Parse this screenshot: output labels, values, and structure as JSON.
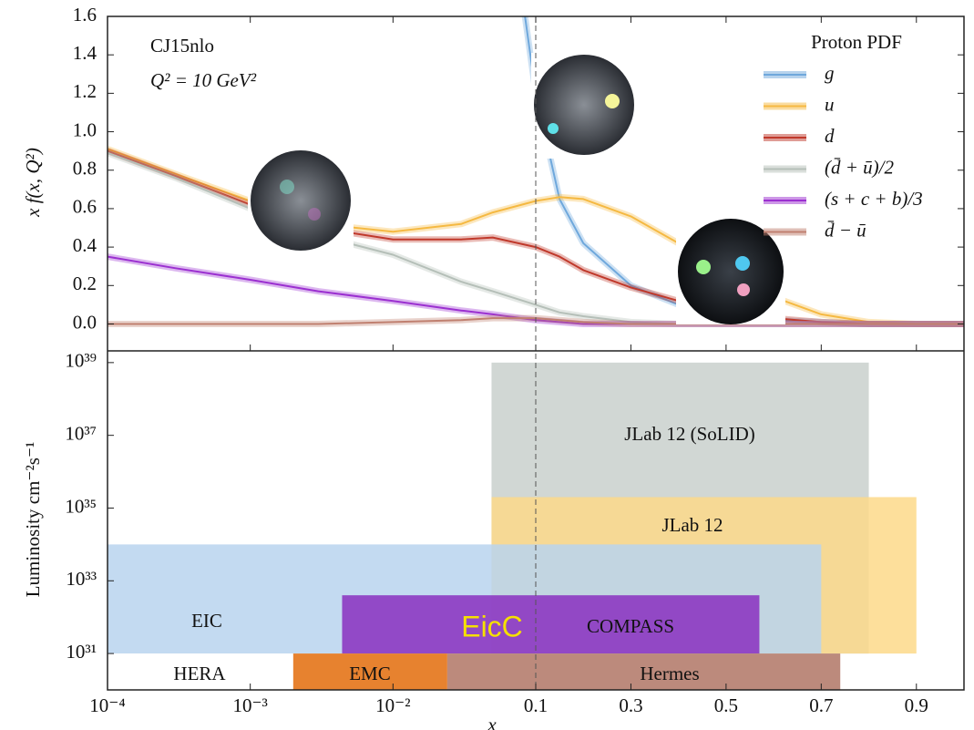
{
  "chart_data": [
    {
      "type": "line",
      "annotations": [
        "CJ15nlo",
        "Q² = 10 GeV²"
      ],
      "ylabel": "x f(x, Q²)",
      "legend_title": "Proton PDF",
      "legend": "upper right",
      "xscale": "log-linear",
      "vline": 0.1,
      "xlim": [
        0.0001,
        1
      ],
      "ylim": [
        -0.14,
        1.6
      ],
      "yticks": [
        {
          "value": 0,
          "label": "0.0"
        },
        0.2,
        0.4,
        0.6,
        0.8,
        {
          "value": 1,
          "label": "1.0"
        },
        1.2,
        1.4,
        1.6
      ],
      "x": [
        0.0001,
        0.0003,
        0.001,
        0.003,
        0.01,
        0.03,
        0.05,
        0.1,
        0.15,
        0.2,
        0.3,
        0.4,
        0.5,
        0.6,
        0.7,
        0.8,
        0.9,
        1
      ],
      "series": [
        {
          "name": "g",
          "color": "#6fa8dc",
          "values": [
            null,
            null,
            null,
            null,
            null,
            null,
            2.8,
            1.2,
            0.65,
            0.42,
            0.2,
            0.1,
            0.05,
            0.02,
            0.01,
            0,
            0,
            0
          ]
        },
        {
          "name": "u",
          "color": "#f5b942",
          "values": [
            0.91,
            0.78,
            0.64,
            0.52,
            0.48,
            0.52,
            0.58,
            0.64,
            0.66,
            0.65,
            0.56,
            0.42,
            0.27,
            0.14,
            0.05,
            0.01,
            0,
            0
          ]
        },
        {
          "name": "d",
          "color": "#c0392b",
          "values": [
            0.9,
            0.77,
            0.62,
            0.5,
            0.44,
            0.44,
            0.45,
            0.4,
            0.35,
            0.28,
            0.19,
            0.12,
            0.07,
            0.03,
            0.01,
            0,
            0,
            0
          ]
        },
        {
          "name": "(d̄ + ū)/2",
          "color": "#b5bfb8",
          "values": [
            0.89,
            0.76,
            0.6,
            0.46,
            0.36,
            0.22,
            0.17,
            0.1,
            0.06,
            0.04,
            0.01,
            0,
            0,
            0,
            0,
            0,
            0,
            0
          ]
        },
        {
          "name": "(s + c + b)/3",
          "color": "#9b30d0",
          "values": [
            0.35,
            0.29,
            0.23,
            0.17,
            0.12,
            0.07,
            0.05,
            0.02,
            0.01,
            0,
            0,
            0,
            0,
            0,
            0,
            0,
            0,
            0
          ]
        },
        {
          "name": "d̄ − ū",
          "color": "#c08070",
          "values": [
            0,
            0,
            0,
            0,
            0.01,
            0.02,
            0.03,
            0.03,
            0.02,
            0.01,
            0,
            0,
            0,
            0,
            0,
            0,
            0,
            0
          ]
        }
      ]
    },
    {
      "type": "range-box",
      "ylabel": "Luminosity cm⁻²s⁻¹",
      "xlabel": "x",
      "xscale": "log-linear",
      "yscale": "log",
      "annotation": "EicC",
      "xlim": [
        0.0001,
        1
      ],
      "xticks": [
        {
          "value": 0.0001,
          "label": "10⁻⁴"
        },
        {
          "value": 0.001,
          "label": "10⁻³"
        },
        {
          "value": 0.01,
          "label": "10⁻²"
        },
        0.1,
        0.3,
        0.5,
        0.7,
        0.9
      ],
      "ylim": [
        1e+30,
        2.1e+39
      ],
      "yticks": [
        {
          "value": 1e+31,
          "label": "10³¹"
        },
        {
          "value": 1e+33,
          "label": "10³³"
        },
        {
          "value": 1e+35,
          "label": "10³⁵"
        },
        {
          "value": 1e+37,
          "label": "10³⁷"
        },
        {
          "value": 1e+39,
          "label": "10³⁹"
        }
      ],
      "boxes": [
        {
          "name": "JLab 12 (SoLID)",
          "color": "#c9d0cd",
          "x": [
            0.049,
            0.8
          ],
          "values": [
            1e+31,
            1e+39
          ]
        },
        {
          "name": "JLab 12",
          "color": "#fdd98a",
          "x": [
            0.049,
            0.9
          ],
          "values": [
            1e+31,
            2e+35
          ]
        },
        {
          "name": "EIC",
          "color": "#b9d4ee",
          "x": [
            0.0001,
            0.7
          ],
          "values": [
            1e+31,
            1e+34
          ]
        },
        {
          "name": "COMPASS",
          "color": "#8a2fc0",
          "x": [
            0.0044,
            0.57
          ],
          "values": [
            1e+31,
            4e+32
          ]
        },
        {
          "name": "HERA",
          "color": "#ffffff",
          "x": [
            0.0001,
            0.002
          ],
          "values": [
            1e+30,
            1e+31
          ]
        },
        {
          "name": "EMC",
          "color": "#e36c0a",
          "x": [
            0.002,
            0.024
          ],
          "values": [
            1e+30,
            1e+31
          ]
        },
        {
          "name": "Hermes",
          "color": "#b07565",
          "x": [
            0.024,
            0.74
          ],
          "values": [
            1e+30,
            1e+31
          ]
        }
      ]
    }
  ]
}
